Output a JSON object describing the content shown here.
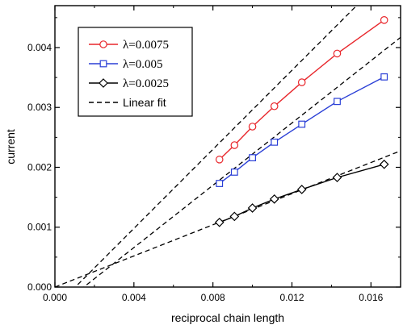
{
  "chart_data": {
    "type": "line",
    "xlabel": "reciprocal chain length",
    "ylabel": "current",
    "xlim": [
      0.0,
      0.0175
    ],
    "ylim": [
      0.0,
      0.0047
    ],
    "x_ticks": [
      "0.000",
      "0.004",
      "0.008",
      "0.012",
      "0.016"
    ],
    "y_ticks": [
      "0.000",
      "0.001",
      "0.002",
      "0.003",
      "0.004"
    ],
    "grid": false,
    "legend_position": "top-left",
    "x": [
      0.00833,
      0.00909,
      0.01,
      0.01111,
      0.0125,
      0.01429,
      0.01667
    ],
    "series": [
      {
        "name": "λ=0.0075",
        "color": "#e8262b",
        "marker": "circle",
        "values": [
          0.00213,
          0.00237,
          0.00268,
          0.00302,
          0.00342,
          0.0039,
          0.00446
        ]
      },
      {
        "name": "λ=0.005",
        "color": "#2a3fd6",
        "marker": "square",
        "values": [
          0.00173,
          0.00192,
          0.00216,
          0.00242,
          0.00272,
          0.0031,
          0.00351
        ]
      },
      {
        "name": "λ=0.0025",
        "color": "#000000",
        "marker": "diamond",
        "values": [
          0.00108,
          0.00118,
          0.00132,
          0.00147,
          0.00163,
          0.00183,
          0.00205
        ]
      }
    ],
    "fits": [
      {
        "name": "Linear fit",
        "style": "dashed",
        "color": "#000000",
        "slope": 0.33,
        "intercept": -0.00034
      },
      {
        "name": "Linear fit",
        "style": "dashed",
        "color": "#000000",
        "slope": 0.26,
        "intercept": -0.00038
      },
      {
        "name": "Linear fit",
        "style": "dashed",
        "color": "#000000",
        "slope": 0.13,
        "intercept": 0.0
      }
    ],
    "legend": [
      {
        "label": "λ=0.0075",
        "color": "#e8262b",
        "marker": "circle",
        "line": "solid"
      },
      {
        "label": "λ=0.005",
        "color": "#2a3fd6",
        "marker": "square",
        "line": "solid"
      },
      {
        "label": "λ=0.0025",
        "color": "#000000",
        "marker": "diamond",
        "line": "solid"
      },
      {
        "label": "Linear fit",
        "color": "#000000",
        "marker": "none",
        "line": "dashed"
      }
    ]
  }
}
